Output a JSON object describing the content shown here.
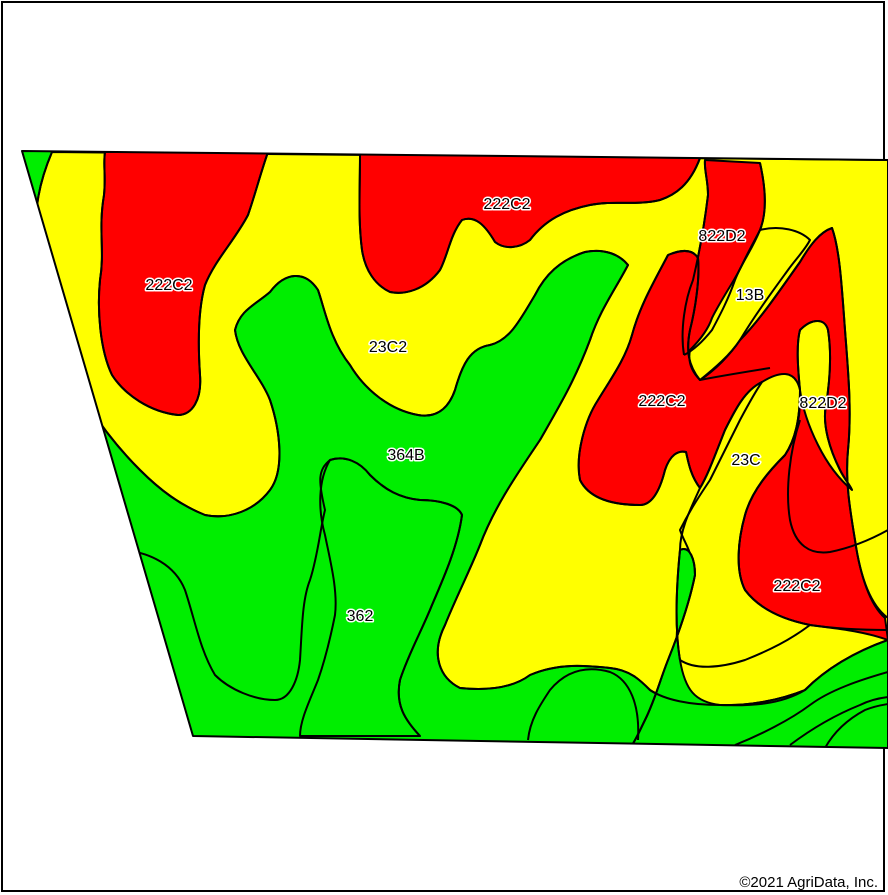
{
  "colors": {
    "green": "#00ee00",
    "yellow": "#ffff00",
    "red": "#ff0000",
    "outline": "#000000"
  },
  "labels": {
    "l1": "222C2",
    "l2": "222C2",
    "l3": "822D2",
    "l4": "13B",
    "l5": "23C2",
    "l6": "222C2",
    "l7": "822D2",
    "l8": "364B",
    "l9": "23C",
    "l10": "222C2",
    "l11": "362"
  },
  "copyright": "©2021 AgriData, Inc."
}
